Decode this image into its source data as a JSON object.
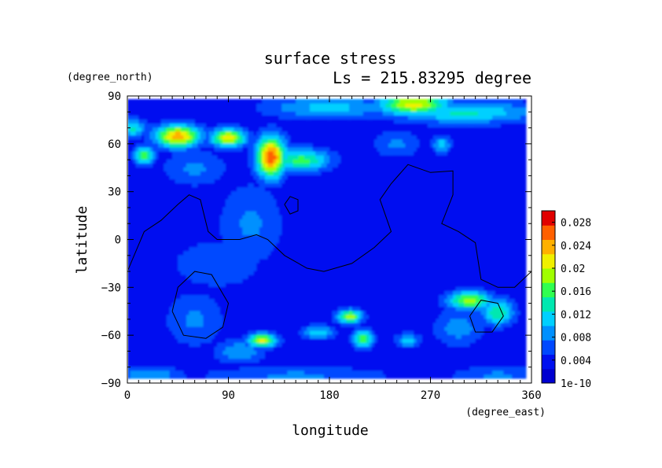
{
  "chart_data": {
    "type": "heatmap",
    "title": "surface stress",
    "subtitle": "Ls = 215.83295 degree",
    "xlabel": "longitude",
    "ylabel": "latitude",
    "x_unit": "(degree_east)",
    "y_unit": "(degree_north)",
    "xlim": [
      0,
      360
    ],
    "ylim": [
      -90,
      90
    ],
    "x_ticks": [
      "0",
      "90",
      "180",
      "270",
      "360"
    ],
    "y_ticks": [
      "90",
      "60",
      "30",
      "0",
      "−30",
      "−60",
      "−90"
    ],
    "x_tick_values": [
      0,
      90,
      180,
      270,
      360
    ],
    "y_tick_values": [
      90,
      60,
      30,
      0,
      -30,
      -60,
      -90
    ],
    "data_extent": {
      "lon": [
        0,
        355
      ],
      "lat": [
        -87,
        87
      ]
    },
    "colorbar": {
      "range": [
        0,
        0.03
      ],
      "labels": [
        "0.028",
        "0.024",
        "0.02",
        "0.016",
        "0.012",
        "0.008",
        "0.004",
        "1e-10"
      ],
      "label_values": [
        0.028,
        0.024,
        0.02,
        0.016,
        0.012,
        0.008,
        0.004,
        0
      ],
      "colors": [
        "#0000d0",
        "#0010f0",
        "#0048ff",
        "#0090ff",
        "#00d0ff",
        "#00e8b0",
        "#30ff50",
        "#a0ff00",
        "#f0f000",
        "#ffb000",
        "#ff6000",
        "#e00000"
      ]
    },
    "background_level": 0.003,
    "features": [
      {
        "lon": 45,
        "lat": 65,
        "value": 0.024,
        "spread_lon": 14,
        "spread_lat": 5
      },
      {
        "lon": 90,
        "lat": 64,
        "value": 0.022,
        "spread_lon": 11,
        "spread_lat": 4
      },
      {
        "lon": 15,
        "lat": 53,
        "value": 0.018,
        "spread_lon": 6,
        "spread_lat": 4
      },
      {
        "lon": 128,
        "lat": 52,
        "value": 0.027,
        "spread_lon": 9,
        "spread_lat": 9
      },
      {
        "lon": 155,
        "lat": 50,
        "value": 0.016,
        "spread_lon": 18,
        "spread_lat": 5
      },
      {
        "lon": 5,
        "lat": 70,
        "value": 0.013,
        "spread_lon": 8,
        "spread_lat": 4
      },
      {
        "lon": 255,
        "lat": 85,
        "value": 0.021,
        "spread_lon": 22,
        "spread_lat": 5
      },
      {
        "lon": 300,
        "lat": 80,
        "value": 0.013,
        "spread_lon": 45,
        "spread_lat": 5
      },
      {
        "lon": 180,
        "lat": 83,
        "value": 0.011,
        "spread_lon": 40,
        "spread_lat": 5
      },
      {
        "lon": 280,
        "lat": 60,
        "value": 0.011,
        "spread_lon": 6,
        "spread_lat": 4
      },
      {
        "lon": 240,
        "lat": 60,
        "value": 0.008,
        "spread_lon": 15,
        "spread_lat": 6
      },
      {
        "lon": 60,
        "lat": 45,
        "value": 0.008,
        "spread_lon": 20,
        "spread_lat": 8
      },
      {
        "lon": 110,
        "lat": 10,
        "value": 0.008,
        "spread_lon": 20,
        "spread_lat": 18
      },
      {
        "lon": 80,
        "lat": -15,
        "value": 0.006,
        "spread_lon": 40,
        "spread_lat": 15
      },
      {
        "lon": 60,
        "lat": -50,
        "value": 0.008,
        "spread_lon": 18,
        "spread_lat": 12
      },
      {
        "lon": 120,
        "lat": -63,
        "value": 0.021,
        "spread_lon": 9,
        "spread_lat": 3
      },
      {
        "lon": 100,
        "lat": -70,
        "value": 0.01,
        "spread_lon": 15,
        "spread_lat": 5
      },
      {
        "lon": 170,
        "lat": -58,
        "value": 0.012,
        "spread_lon": 10,
        "spread_lat": 3
      },
      {
        "lon": 198,
        "lat": -48,
        "value": 0.019,
        "spread_lon": 8,
        "spread_lat": 3
      },
      {
        "lon": 210,
        "lat": -62,
        "value": 0.018,
        "spread_lon": 6,
        "spread_lat": 4
      },
      {
        "lon": 250,
        "lat": -63,
        "value": 0.011,
        "spread_lon": 8,
        "spread_lat": 3
      },
      {
        "lon": 305,
        "lat": -38,
        "value": 0.019,
        "spread_lon": 14,
        "spread_lat": 4
      },
      {
        "lon": 330,
        "lat": -45,
        "value": 0.015,
        "spread_lon": 10,
        "spread_lat": 6
      },
      {
        "lon": 295,
        "lat": -55,
        "value": 0.009,
        "spread_lon": 15,
        "spread_lat": 8
      },
      {
        "lon": 20,
        "lat": -85,
        "value": 0.01,
        "spread_lon": 20,
        "spread_lat": 4
      },
      {
        "lon": 150,
        "lat": -85,
        "value": 0.008,
        "spread_lon": 60,
        "spread_lat": 4
      },
      {
        "lon": 330,
        "lat": -85,
        "value": 0.008,
        "spread_lon": 30,
        "spread_lat": 4
      },
      {
        "lon": 250,
        "lat": -10,
        "value": 0.004,
        "spread_lon": 30,
        "spread_lat": 15
      }
    ],
    "contour_lines": [
      {
        "name": "dichotomy-boundary",
        "points": [
          [
            0,
            -20
          ],
          [
            15,
            5
          ],
          [
            30,
            12
          ],
          [
            45,
            22
          ],
          [
            55,
            28
          ],
          [
            65,
            25
          ],
          [
            72,
            5
          ],
          [
            80,
            0
          ],
          [
            100,
            0
          ],
          [
            115,
            3
          ],
          [
            125,
            0
          ],
          [
            140,
            -10
          ],
          [
            160,
            -18
          ],
          [
            175,
            -20
          ],
          [
            200,
            -15
          ],
          [
            220,
            -5
          ],
          [
            235,
            5
          ],
          [
            225,
            25
          ],
          [
            235,
            35
          ],
          [
            250,
            47
          ],
          [
            270,
            42
          ],
          [
            290,
            43
          ],
          [
            290,
            28
          ],
          [
            280,
            10
          ],
          [
            295,
            5
          ],
          [
            310,
            -2
          ],
          [
            315,
            -25
          ],
          [
            330,
            -30
          ],
          [
            345,
            -30
          ],
          [
            360,
            -20
          ]
        ]
      },
      {
        "name": "elysium-contour",
        "points": [
          [
            140,
            22
          ],
          [
            145,
            27
          ],
          [
            152,
            25
          ],
          [
            152,
            18
          ],
          [
            145,
            16
          ],
          [
            140,
            22
          ]
        ]
      },
      {
        "name": "hellas-contour",
        "points": [
          [
            40,
            -45
          ],
          [
            45,
            -30
          ],
          [
            60,
            -20
          ],
          [
            75,
            -22
          ],
          [
            90,
            -40
          ],
          [
            85,
            -55
          ],
          [
            70,
            -62
          ],
          [
            50,
            -60
          ],
          [
            40,
            -45
          ]
        ]
      },
      {
        "name": "argyre-contour",
        "points": [
          [
            305,
            -48
          ],
          [
            315,
            -38
          ],
          [
            330,
            -40
          ],
          [
            335,
            -48
          ],
          [
            325,
            -58
          ],
          [
            310,
            -58
          ],
          [
            305,
            -48
          ]
        ]
      }
    ]
  }
}
